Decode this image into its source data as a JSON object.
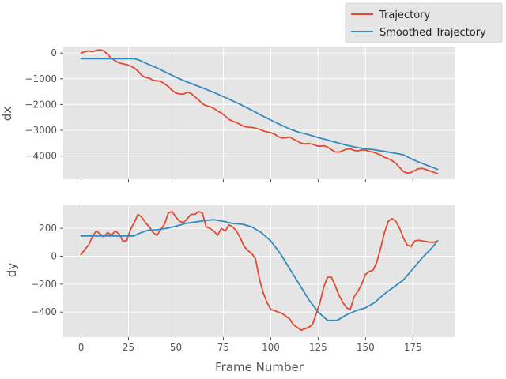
{
  "chart_data": [
    {
      "type": "line",
      "title": "",
      "xlabel": "",
      "ylabel": "dx",
      "xlim": [
        -9.4,
        197.4
      ],
      "ylim": [
        -4900,
        250
      ],
      "grid": true,
      "xticks": [
        0,
        25,
        50,
        75,
        100,
        125,
        150,
        175
      ],
      "yticks": [
        0,
        -1000,
        -2000,
        -3000,
        -4000
      ],
      "ytick_labels": [
        "0",
        "−1000",
        "−2000",
        "−3000",
        "−4000"
      ],
      "series": [
        {
          "name": "Trajectory",
          "color": "#E24A33",
          "x": [
            0,
            2,
            4,
            6,
            8,
            10,
            12,
            14,
            16,
            18,
            20,
            22,
            24,
            26,
            28,
            30,
            32,
            34,
            36,
            38,
            40,
            42,
            44,
            46,
            48,
            50,
            52,
            54,
            56,
            58,
            60,
            62,
            64,
            66,
            68,
            70,
            72,
            74,
            76,
            78,
            80,
            82,
            84,
            86,
            88,
            90,
            92,
            94,
            96,
            98,
            100,
            102,
            104,
            106,
            108,
            110,
            112,
            114,
            116,
            118,
            120,
            122,
            124,
            126,
            128,
            130,
            132,
            134,
            136,
            138,
            140,
            142,
            144,
            146,
            148,
            150,
            152,
            154,
            156,
            158,
            160,
            162,
            164,
            166,
            168,
            170,
            172,
            174,
            176,
            178,
            180,
            182,
            184,
            186,
            188
          ],
          "values": [
            0,
            50,
            80,
            50,
            100,
            120,
            80,
            -50,
            -200,
            -300,
            -380,
            -420,
            -450,
            -500,
            -580,
            -700,
            -870,
            -950,
            -980,
            -1060,
            -1080,
            -1100,
            -1200,
            -1300,
            -1450,
            -1550,
            -1590,
            -1600,
            -1520,
            -1570,
            -1700,
            -1820,
            -1970,
            -2050,
            -2080,
            -2150,
            -2250,
            -2330,
            -2450,
            -2580,
            -2650,
            -2700,
            -2780,
            -2850,
            -2880,
            -2890,
            -2920,
            -2960,
            -3020,
            -3060,
            -3090,
            -3150,
            -3250,
            -3300,
            -3290,
            -3260,
            -3350,
            -3420,
            -3500,
            -3530,
            -3510,
            -3540,
            -3600,
            -3620,
            -3600,
            -3650,
            -3750,
            -3840,
            -3850,
            -3790,
            -3730,
            -3720,
            -3780,
            -3800,
            -3760,
            -3770,
            -3820,
            -3850,
            -3900,
            -3960,
            -4050,
            -4100,
            -4180,
            -4280,
            -4450,
            -4600,
            -4660,
            -4640,
            -4560,
            -4490,
            -4480,
            -4530,
            -4580,
            -4630,
            -4680
          ]
        },
        {
          "name": "Smoothed Trajectory",
          "color": "#348ABD",
          "x": [
            0,
            28,
            30,
            35,
            40,
            45,
            50,
            55,
            60,
            65,
            70,
            75,
            80,
            85,
            90,
            95,
            100,
            105,
            110,
            115,
            120,
            125,
            130,
            135,
            140,
            145,
            150,
            155,
            160,
            165,
            170,
            175,
            180,
            185,
            188
          ],
          "values": [
            -220,
            -220,
            -260,
            -420,
            -580,
            -760,
            -940,
            -1100,
            -1240,
            -1380,
            -1530,
            -1690,
            -1860,
            -2030,
            -2220,
            -2420,
            -2600,
            -2780,
            -2950,
            -3080,
            -3170,
            -3280,
            -3380,
            -3480,
            -3580,
            -3660,
            -3720,
            -3760,
            -3820,
            -3880,
            -3950,
            -4140,
            -4290,
            -4430,
            -4520
          ]
        }
      ]
    },
    {
      "type": "line",
      "title": "",
      "xlabel": "Frame Number",
      "ylabel": "dy",
      "xlim": [
        -9.4,
        197.4
      ],
      "ylim": [
        -580,
        365
      ],
      "grid": true,
      "xticks": [
        0,
        25,
        50,
        75,
        100,
        125,
        150,
        175
      ],
      "yticks": [
        200,
        0,
        -200,
        -400
      ],
      "ytick_labels": [
        "200",
        "0",
        "−200",
        "−400"
      ],
      "series": [
        {
          "name": "Trajectory",
          "color": "#E24A33",
          "x": [
            0,
            2,
            4,
            6,
            8,
            10,
            12,
            14,
            16,
            18,
            20,
            22,
            24,
            26,
            28,
            30,
            32,
            34,
            36,
            38,
            40,
            42,
            44,
            46,
            48,
            50,
            52,
            54,
            56,
            58,
            60,
            62,
            64,
            66,
            68,
            70,
            72,
            74,
            76,
            78,
            80,
            82,
            84,
            86,
            88,
            90,
            92,
            94,
            96,
            98,
            100,
            102,
            104,
            106,
            108,
            110,
            112,
            114,
            116,
            118,
            120,
            122,
            124,
            126,
            128,
            130,
            132,
            134,
            136,
            138,
            140,
            142,
            144,
            146,
            148,
            150,
            152,
            154,
            156,
            158,
            160,
            162,
            164,
            166,
            168,
            170,
            172,
            174,
            176,
            178,
            180,
            182,
            184,
            186,
            188
          ],
          "values": [
            10,
            50,
            80,
            140,
            180,
            160,
            140,
            170,
            150,
            180,
            160,
            110,
            110,
            190,
            240,
            300,
            280,
            240,
            210,
            170,
            150,
            190,
            230,
            310,
            320,
            280,
            250,
            240,
            270,
            300,
            300,
            320,
            310,
            210,
            200,
            180,
            150,
            200,
            180,
            225,
            210,
            180,
            130,
            70,
            40,
            20,
            -20,
            -160,
            -260,
            -330,
            -380,
            -390,
            -400,
            -410,
            -430,
            -450,
            -490,
            -510,
            -530,
            -520,
            -510,
            -490,
            -410,
            -330,
            -220,
            -150,
            -150,
            -210,
            -280,
            -330,
            -370,
            -380,
            -290,
            -250,
            -200,
            -130,
            -110,
            -100,
            -40,
            60,
            170,
            250,
            270,
            250,
            200,
            130,
            80,
            70,
            110,
            115,
            110,
            105,
            100,
            100,
            110
          ],
          "values_note": "",
          "x_note": ""
        },
        {
          "name": "Smoothed Trajectory",
          "color": "#348ABD",
          "x": [
            0,
            28,
            30,
            35,
            40,
            45,
            50,
            55,
            60,
            65,
            70,
            75,
            80,
            85,
            90,
            95,
            100,
            105,
            110,
            115,
            120,
            125,
            130,
            135,
            140,
            145,
            150,
            155,
            160,
            165,
            170,
            175,
            180,
            185,
            188
          ],
          "values": [
            145,
            145,
            160,
            185,
            190,
            200,
            215,
            235,
            245,
            255,
            262,
            250,
            235,
            230,
            210,
            170,
            110,
            20,
            -90,
            -200,
            -310,
            -400,
            -460,
            -460,
            -420,
            -390,
            -370,
            -330,
            -270,
            -220,
            -170,
            -90,
            -10,
            60,
            110
          ]
        }
      ]
    }
  ],
  "legend": {
    "placement": "top-right",
    "items": [
      {
        "label": "Trajectory",
        "color": "#E24A33"
      },
      {
        "label": "Smoothed Trajectory",
        "color": "#348ABD"
      }
    ]
  },
  "style": {
    "panel_background": "#E5E5E5",
    "grid_color": "#FFFFFF",
    "text_color": "#555555"
  }
}
